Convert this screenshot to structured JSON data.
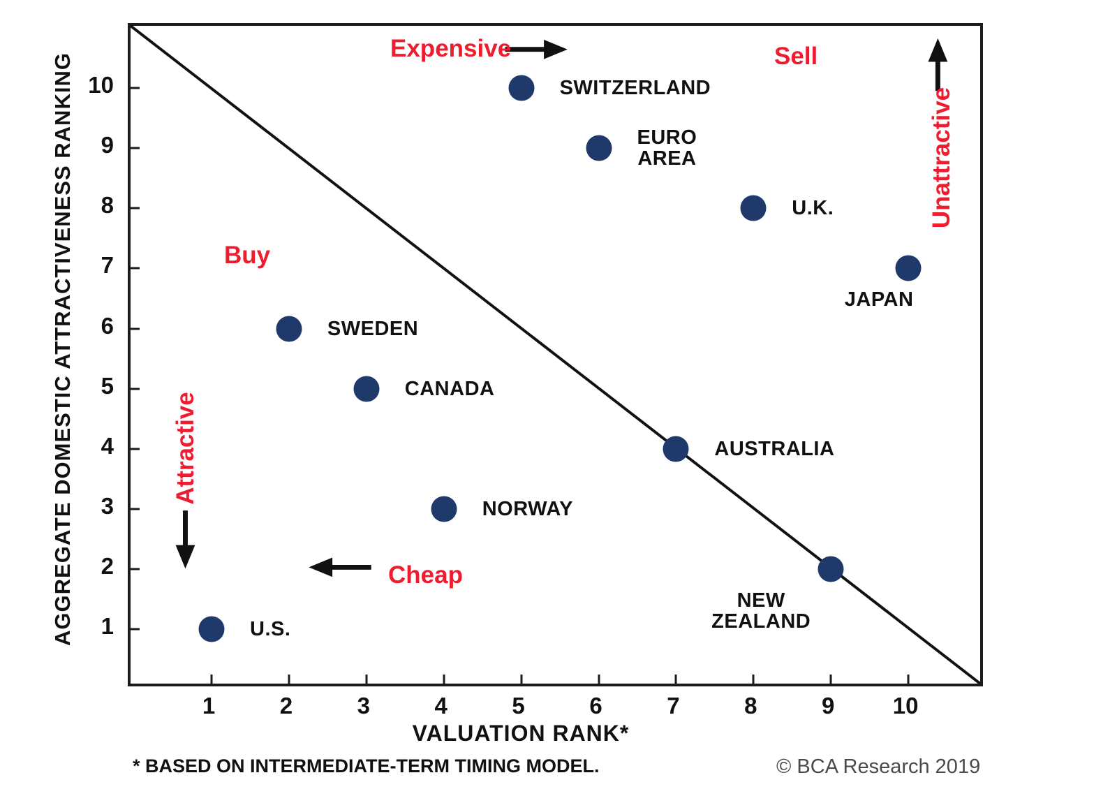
{
  "chart_data": {
    "type": "scatter",
    "xlabel": "VALUATION RANK*",
    "ylabel": "AGGREGATE DOMESTIC ATTRACTIVENESS RANKING",
    "x_ticks": [
      1,
      2,
      3,
      4,
      5,
      6,
      7,
      8,
      9,
      10
    ],
    "y_ticks": [
      1,
      2,
      3,
      4,
      5,
      6,
      7,
      8,
      9,
      10
    ],
    "xlim": [
      0,
      11
    ],
    "ylim": [
      0,
      11
    ],
    "grid": false,
    "diagonal_line": "from top-left corner to bottom-right corner of plot",
    "points": [
      {
        "label_lines": [
          "SWITZERLAND"
        ],
        "x": 5,
        "y": 10,
        "side": "right"
      },
      {
        "label_lines": [
          "EURO",
          "AREA"
        ],
        "x": 6,
        "y": 9,
        "side": "right"
      },
      {
        "label_lines": [
          "U.K."
        ],
        "x": 8,
        "y": 8,
        "side": "right"
      },
      {
        "label_lines": [
          "JAPAN"
        ],
        "x": 10,
        "y": 7,
        "side": "below-left",
        "label_dx": -42
      },
      {
        "label_lines": [
          "SWEDEN"
        ],
        "x": 2,
        "y": 6,
        "side": "right"
      },
      {
        "label_lines": [
          "CANADA"
        ],
        "x": 3,
        "y": 5,
        "side": "right"
      },
      {
        "label_lines": [
          "AUSTRALIA"
        ],
        "x": 7,
        "y": 4,
        "side": "right"
      },
      {
        "label_lines": [
          "NORWAY"
        ],
        "x": 4,
        "y": 3,
        "side": "right"
      },
      {
        "label_lines": [
          "NEW",
          "ZEALAND"
        ],
        "x": 9,
        "y": 2,
        "side": "below-left",
        "label_dx": -100
      },
      {
        "label_lines": [
          "U.S."
        ],
        "x": 1,
        "y": 1,
        "side": "right"
      }
    ],
    "annotations": {
      "expensive": {
        "text": "Expensive",
        "arrow": "right"
      },
      "sell": {
        "text": "Sell",
        "arrow": "none"
      },
      "unattractive": {
        "text": "Unattractive",
        "arrow": "up"
      },
      "buy": {
        "text": "Buy",
        "arrow": "none"
      },
      "attractive": {
        "text": "Attractive",
        "arrow": "down"
      },
      "cheap": {
        "text": "Cheap",
        "arrow": "left"
      }
    }
  },
  "footer": {
    "footnote": "* BASED ON INTERMEDIATE-TERM TIMING MODEL.",
    "copyright": "© BCA Research 2019"
  },
  "colors": {
    "dot": "#1f396b",
    "annotation_red": "#ed1c2e",
    "axis": "#1c1c1c",
    "copyright_gray": "#4a4a4a"
  }
}
